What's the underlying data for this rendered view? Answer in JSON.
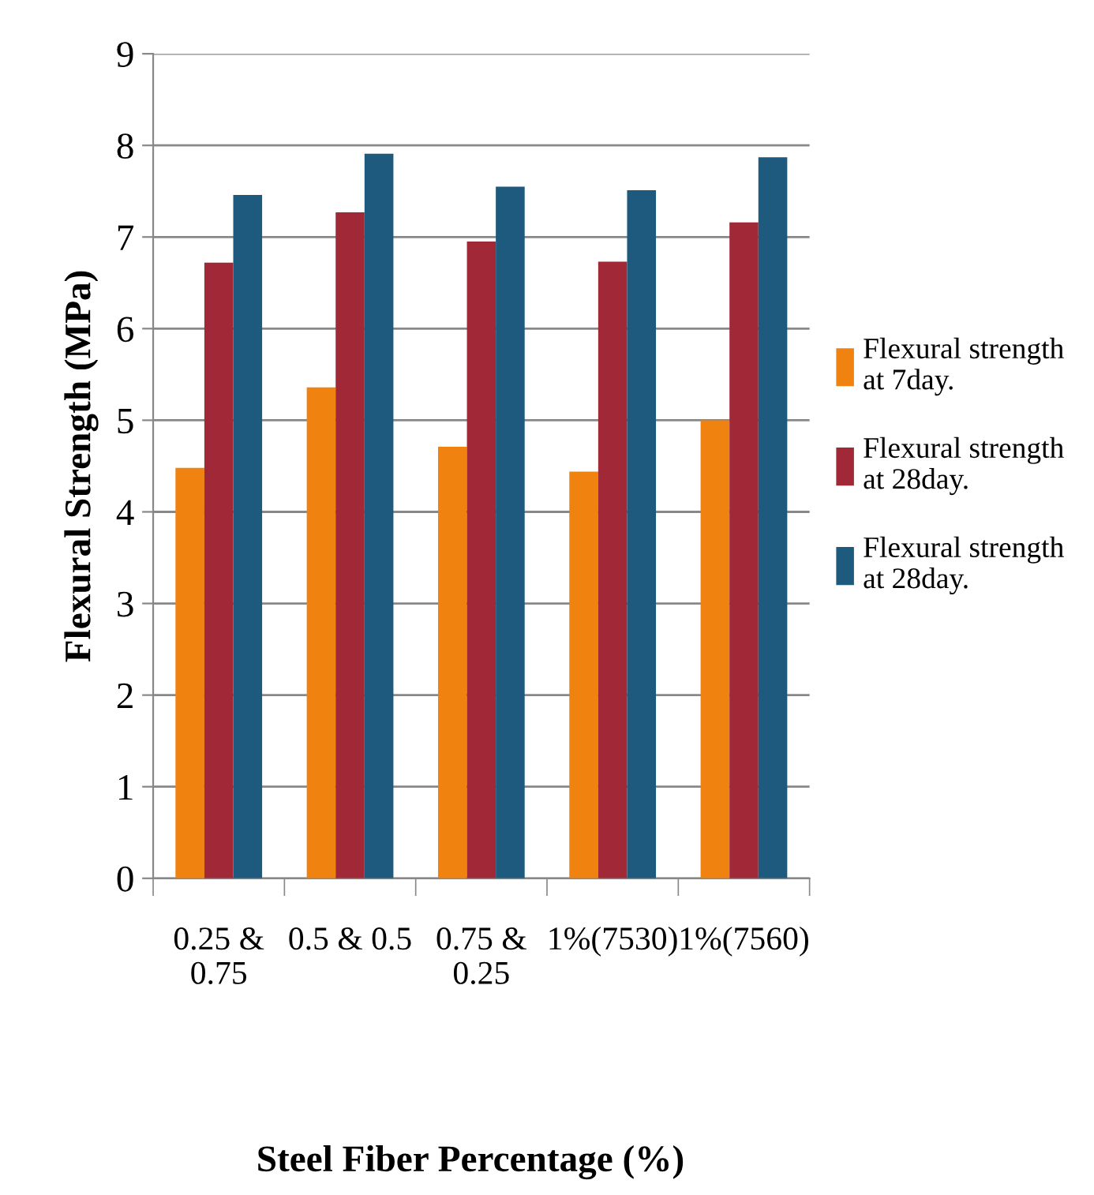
{
  "chart_data": {
    "type": "bar",
    "xlabel": "Steel Fiber Percentage (%)",
    "ylabel": "Flexural Strength (MPa)",
    "categories": [
      "0.25 &\n0.75",
      "0.5 & 0.5",
      "0.75 &\n0.25",
      "1%(7530)",
      "1%(7560)"
    ],
    "series": [
      {
        "name": "Flexural strength\nat 7day.",
        "color": "#f0820f",
        "values": [
          4.48,
          5.36,
          4.71,
          4.44,
          5.0
        ]
      },
      {
        "name": "Flexural strength\nat 28day.",
        "color": "#a02837",
        "values": [
          6.72,
          7.27,
          6.95,
          6.73,
          7.16
        ]
      },
      {
        "name": "Flexural strength\nat 28day.",
        "color": "#1e5a7d",
        "values": [
          7.46,
          7.91,
          7.55,
          7.51,
          7.87
        ]
      }
    ],
    "ylim": [
      0,
      9
    ],
    "yticks": [
      0,
      1,
      2,
      3,
      4,
      5,
      6,
      7,
      8,
      9
    ],
    "grid": "y",
    "legend": "right"
  }
}
